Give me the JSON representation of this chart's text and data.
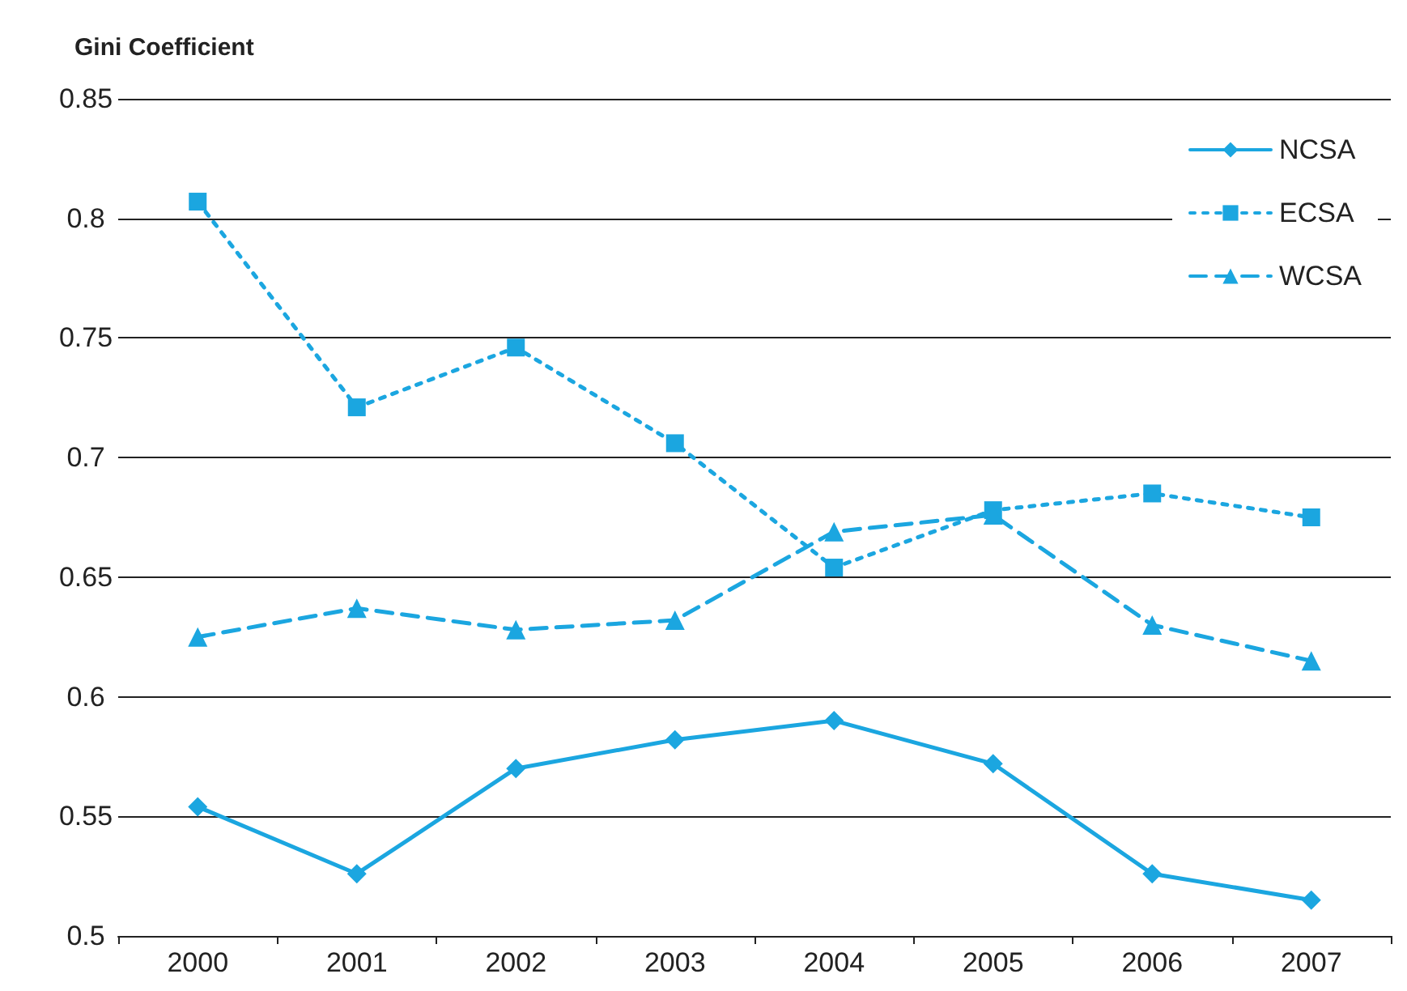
{
  "chart_data": {
    "type": "line",
    "ylabel": "Gini Coefficient",
    "categories": [
      "2000",
      "2001",
      "2002",
      "2003",
      "2004",
      "2005",
      "2006",
      "2007"
    ],
    "series": [
      {
        "name": "NCSA",
        "color": "#1ba6e0",
        "marker": "diamond",
        "line_style": "solid",
        "values": [
          0.554,
          0.526,
          0.57,
          0.582,
          0.59,
          0.572,
          0.526,
          0.515
        ]
      },
      {
        "name": "ECSA",
        "color": "#1ba6e0",
        "marker": "square",
        "line_style": "dotted",
        "values": [
          0.807,
          0.721,
          0.746,
          0.706,
          0.654,
          0.678,
          0.685,
          0.675
        ]
      },
      {
        "name": "WCSA",
        "color": "#1ba6e0",
        "marker": "triangle",
        "line_style": "dashed",
        "values": [
          0.625,
          0.637,
          0.628,
          0.632,
          0.669,
          0.676,
          0.63,
          0.615
        ]
      }
    ],
    "ylim": [
      0.5,
      0.85
    ],
    "yticks": [
      0.5,
      0.55,
      0.6,
      0.65,
      0.7,
      0.75,
      0.8,
      0.85
    ],
    "grid": "y",
    "legend": "top right"
  }
}
